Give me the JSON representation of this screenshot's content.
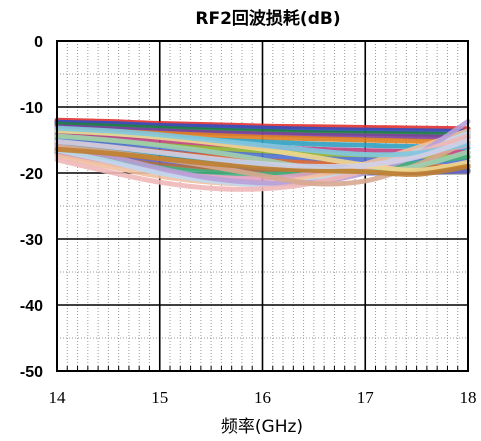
{
  "chart_data": {
    "type": "line",
    "title": "RF2回波损耗(dB)",
    "xlabel": "频率(GHz)",
    "ylabel": "",
    "xlim": [
      14,
      18
    ],
    "ylim": [
      -50,
      0
    ],
    "x_ticks": [
      "14",
      "15",
      "16",
      "17",
      "18"
    ],
    "y_ticks": [
      "0",
      "-10",
      "-20",
      "-30",
      "-40",
      "-50"
    ],
    "grid": "major solid, minor dotted",
    "legend": "none",
    "x": [
      14,
      14.5,
      15,
      15.5,
      16,
      16.5,
      17,
      17.5,
      18
    ],
    "series": [
      {
        "color": "#e03030",
        "values": [
          -12.0,
          -12.2,
          -12.5,
          -12.7,
          -12.9,
          -13.0,
          -13.1,
          -13.2,
          -13.3
        ]
      },
      {
        "color": "#3050c0",
        "values": [
          -12.3,
          -12.5,
          -12.8,
          -13.0,
          -13.2,
          -13.4,
          -13.5,
          -13.6,
          -13.7
        ]
      },
      {
        "color": "#208040",
        "values": [
          -12.6,
          -12.9,
          -13.2,
          -13.5,
          -13.7,
          -13.9,
          -14.0,
          -14.1,
          -14.2
        ]
      },
      {
        "color": "#8040a0",
        "values": [
          -13.0,
          -13.3,
          -13.6,
          -13.9,
          -14.1,
          -14.3,
          -14.4,
          -14.5,
          -14.6
        ]
      },
      {
        "color": "#e08020",
        "values": [
          -13.4,
          -13.7,
          -14.0,
          -14.3,
          -14.6,
          -14.8,
          -15.0,
          -15.2,
          -15.3
        ]
      },
      {
        "color": "#30a0c0",
        "values": [
          -13.8,
          -14.2,
          -14.6,
          -15.0,
          -15.3,
          -15.6,
          -15.8,
          -16.0,
          -16.2
        ]
      },
      {
        "color": "#c04080",
        "values": [
          -14.2,
          -14.7,
          -15.2,
          -15.7,
          -16.1,
          -16.4,
          -16.6,
          -16.8,
          -16.9
        ]
      },
      {
        "color": "#90b030",
        "values": [
          -14.6,
          -15.2,
          -15.8,
          -16.3,
          -16.8,
          -17.1,
          -17.3,
          -17.5,
          -17.6
        ]
      },
      {
        "color": "#5070d0",
        "values": [
          -15.0,
          -15.6,
          -16.3,
          -16.9,
          -17.4,
          -17.8,
          -18.0,
          -18.2,
          -18.3
        ]
      },
      {
        "color": "#d06030",
        "values": [
          -15.4,
          -16.1,
          -16.8,
          -17.5,
          -18.1,
          -18.5,
          -18.8,
          -19.0,
          -19.1
        ]
      },
      {
        "color": "#2090a0",
        "values": [
          -15.8,
          -16.6,
          -17.4,
          -18.1,
          -18.7,
          -19.1,
          -19.4,
          -19.5,
          -19.6
        ]
      },
      {
        "color": "#a0a0a0",
        "values": [
          -16.2,
          -17.1,
          -17.9,
          -18.6,
          -19.2,
          -19.6,
          -19.8,
          -19.9,
          -19.9
        ]
      },
      {
        "color": "#6060c0",
        "values": [
          -16.5,
          -17.5,
          -18.4,
          -19.1,
          -19.6,
          -19.9,
          -20.0,
          -19.9,
          -19.7
        ]
      },
      {
        "color": "#b07040",
        "values": [
          -16.8,
          -17.8,
          -18.8,
          -19.5,
          -19.9,
          -20.0,
          -19.8,
          -19.4,
          -18.8
        ]
      },
      {
        "color": "#40b080",
        "values": [
          -17.0,
          -18.1,
          -19.2,
          -19.9,
          -20.2,
          -20.0,
          -19.4,
          -18.5,
          -17.5
        ]
      },
      {
        "color": "#e0a0c0",
        "values": [
          -17.2,
          -18.5,
          -19.8,
          -20.6,
          -20.8,
          -20.1,
          -18.9,
          -17.4,
          -15.8
        ]
      },
      {
        "color": "#f0c0a0",
        "values": [
          -17.5,
          -19.0,
          -20.5,
          -21.4,
          -21.6,
          -20.6,
          -18.6,
          -16.2,
          -13.6
        ]
      },
      {
        "color": "#c0d8f0",
        "values": [
          -16.5,
          -18.2,
          -20.0,
          -21.2,
          -21.8,
          -21.2,
          -19.4,
          -16.8,
          -14.0
        ]
      },
      {
        "color": "#b8a0d8",
        "values": [
          -15.8,
          -17.4,
          -19.3,
          -20.8,
          -21.5,
          -21.4,
          -20.0,
          -17.2,
          -12.2
        ]
      },
      {
        "color": "#f0b8b8",
        "values": [
          -18.0,
          -19.8,
          -21.4,
          -22.3,
          -22.4,
          -21.5,
          -19.6,
          -17.0,
          -14.4
        ]
      },
      {
        "color": "#d8a890",
        "values": [
          -16.0,
          -16.8,
          -17.8,
          -19.0,
          -20.4,
          -21.6,
          -21.2,
          -18.8,
          -15.2
        ]
      },
      {
        "color": "#a0d0b0",
        "values": [
          -14.4,
          -15.0,
          -15.8,
          -16.8,
          -18.0,
          -19.3,
          -19.8,
          -19.0,
          -16.8
        ]
      },
      {
        "color": "#f0d890",
        "values": [
          -13.6,
          -14.0,
          -14.6,
          -15.4,
          -16.4,
          -17.6,
          -18.8,
          -19.6,
          -18.4
        ]
      },
      {
        "color": "#c08030",
        "values": [
          -16.4,
          -17.0,
          -17.8,
          -18.6,
          -19.2,
          -19.6,
          -19.8,
          -20.2,
          -19.0
        ]
      },
      {
        "color": "#80c8e0",
        "values": [
          -13.2,
          -13.6,
          -14.2,
          -15.0,
          -15.8,
          -16.6,
          -17.2,
          -17.0,
          -15.6
        ]
      },
      {
        "color": "#d0d0e8",
        "values": [
          -15.2,
          -16.0,
          -16.9,
          -17.8,
          -18.6,
          -19.0,
          -18.8,
          -17.6,
          -15.0
        ]
      }
    ]
  }
}
